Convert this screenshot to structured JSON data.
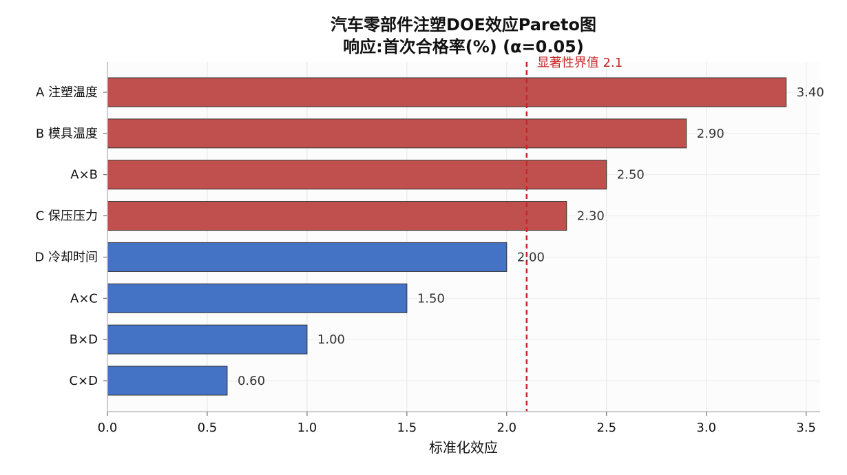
{
  "chart_data": {
    "type": "bar",
    "orientation": "horizontal",
    "title": "汽车零部件注塑DOE效应Pareto图",
    "subtitle": "响应:首次合格率(%)  (α=0.05)",
    "xlabel": "标准化效应",
    "ylabel": "",
    "xlim": [
      0,
      3.57
    ],
    "xticks": [
      "0.0",
      "0.5",
      "1.0",
      "1.5",
      "2.0",
      "2.5",
      "3.0",
      "3.5"
    ],
    "grid": true,
    "categories": [
      "A 注塑温度",
      "B 模具温度",
      "A×B",
      "C 保压压力",
      "D 冷却时间",
      "A×C",
      "B×D",
      "C×D"
    ],
    "values": [
      3.4,
      2.9,
      2.5,
      2.3,
      2.0,
      1.5,
      1.0,
      0.6
    ],
    "value_labels": [
      "3.40",
      "2.90",
      "2.50",
      "2.30",
      "2.00",
      "1.50",
      "1.00",
      "0.60"
    ],
    "significant_color": "#c0504d",
    "nonsignificant_color": "#4472c4",
    "threshold": {
      "value": 2.1,
      "label": "显著性界值 2.1",
      "color": "#c62828"
    }
  }
}
